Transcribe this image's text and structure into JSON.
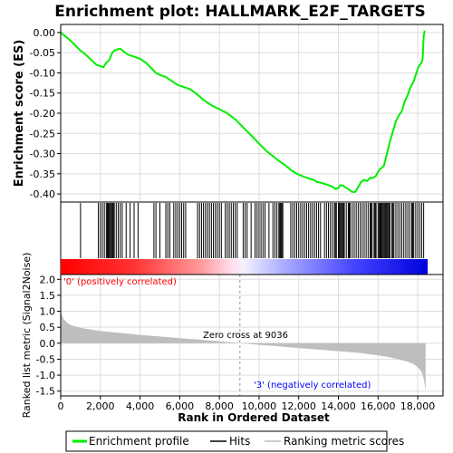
{
  "chart_data": {
    "title": "Enrichment plot: HALLMARK_E2F_TARGETS",
    "type": "line",
    "x_range": [
      0,
      18500
    ],
    "x_ticks": [
      0,
      2000,
      4000,
      6000,
      8000,
      10000,
      12000,
      14000,
      16000,
      18000
    ],
    "x_tick_labels": [
      "0",
      "2,000",
      "4,000",
      "6,000",
      "8,000",
      "10,000",
      "12,000",
      "14,000",
      "16,000",
      "18,000"
    ],
    "xlabel": "Rank in Ordered Dataset",
    "panels": {
      "es": {
        "ylabel": "Enrichment score (ES)",
        "ylim": [
          -0.42,
          0.02
        ],
        "y_ticks": [
          0.0,
          -0.05,
          -0.1,
          -0.15,
          -0.2,
          -0.25,
          -0.3,
          -0.35,
          -0.4
        ],
        "y_tick_labels": [
          "0.00",
          "-0.05",
          "-0.10",
          "-0.15",
          "-0.20",
          "-0.25",
          "-0.30",
          "-0.35",
          "-0.40"
        ],
        "grid": true,
        "series": [
          {
            "name": "Enrichment profile",
            "color": "#00ee00",
            "x": [
              0,
              300,
              600,
              900,
              1000,
              1200,
              1500,
              1800,
              1900,
              2000,
              2150,
              2300,
              2450,
              2600,
              2700,
              2850,
              3000,
              3150,
              3400,
              3700,
              4000,
              4300,
              4600,
              4800,
              5000,
              5300,
              5600,
              5900,
              6200,
              6500,
              6800,
              7200,
              7600,
              8000,
              8400,
              8800,
              9200,
              9600,
              10000,
              10400,
              10800,
              11000,
              11200,
              11400,
              11600,
              11800,
              12000,
              12300,
              12600,
              12800,
              12900,
              13100,
              13300,
              13500,
              13700,
              13850,
              14000,
              14100,
              14250,
              14400,
              14550,
              14700,
              14850,
              15000,
              15150,
              15300,
              15450,
              15600,
              15750,
              15900,
              16000,
              16100,
              16200,
              16300,
              16450,
              16600,
              16750,
              16900,
              17050,
              17200,
              17350,
              17500,
              17600,
              17700,
              17800,
              17900,
              18000,
              18100,
              18200,
              18250,
              18300,
              18350
            ],
            "y": [
              0.0,
              -0.012,
              -0.025,
              -0.04,
              -0.045,
              -0.052,
              -0.066,
              -0.08,
              -0.082,
              -0.083,
              -0.086,
              -0.075,
              -0.068,
              -0.05,
              -0.045,
              -0.042,
              -0.04,
              -0.046,
              -0.055,
              -0.06,
              -0.065,
              -0.075,
              -0.09,
              -0.1,
              -0.105,
              -0.11,
              -0.12,
              -0.13,
              -0.135,
              -0.14,
              -0.15,
              -0.167,
              -0.18,
              -0.19,
              -0.2,
              -0.215,
              -0.235,
              -0.255,
              -0.275,
              -0.295,
              -0.31,
              -0.318,
              -0.325,
              -0.332,
              -0.34,
              -0.347,
              -0.352,
              -0.358,
              -0.363,
              -0.366,
              -0.37,
              -0.372,
              -0.375,
              -0.378,
              -0.382,
              -0.388,
              -0.385,
              -0.378,
              -0.38,
              -0.385,
              -0.39,
              -0.395,
              -0.395,
              -0.383,
              -0.37,
              -0.365,
              -0.368,
              -0.36,
              -0.36,
              -0.355,
              -0.345,
              -0.338,
              -0.335,
              -0.33,
              -0.3,
              -0.27,
              -0.245,
              -0.22,
              -0.205,
              -0.195,
              -0.17,
              -0.155,
              -0.14,
              -0.13,
              -0.12,
              -0.105,
              -0.09,
              -0.08,
              -0.075,
              -0.065,
              -0.01,
              0.005
            ]
          }
        ]
      },
      "hits": {
        "name": "Hits",
        "positions": [
          1000,
          1900,
          2000,
          2100,
          2200,
          2300,
          2350,
          2400,
          2450,
          2500,
          2550,
          2600,
          2650,
          2700,
          2800,
          2900,
          3000,
          3100,
          3300,
          3500,
          3700,
          3900,
          4700,
          4800,
          5000,
          5300,
          5400,
          5500,
          5700,
          5800,
          5900,
          6000,
          6100,
          6200,
          6300,
          6900,
          7000,
          7100,
          7200,
          7300,
          7400,
          7500,
          7600,
          7700,
          7800,
          7900,
          8000,
          8100,
          8300,
          8400,
          8500,
          8600,
          8700,
          8800,
          8900,
          9200,
          9300,
          9400,
          9600,
          9800,
          9900,
          10000,
          10100,
          10200,
          10300,
          10500,
          10700,
          10800,
          10900,
          11000,
          11050,
          11100,
          11150,
          11200,
          11600,
          11700,
          11800,
          11900,
          12000,
          12100,
          12200,
          12300,
          12400,
          12500,
          12600,
          12700,
          12800,
          12900,
          13000,
          13100,
          13300,
          13400,
          13500,
          13600,
          13700,
          13800,
          13850,
          13900,
          14000,
          14050,
          14100,
          14150,
          14200,
          14250,
          14300,
          14400,
          14500,
          14550,
          14600,
          14700,
          14800,
          14900,
          15000,
          15100,
          15200,
          15300,
          15400,
          15500,
          15600,
          15650,
          15700,
          15800,
          15850,
          15900,
          16000,
          16050,
          16100,
          16150,
          16200,
          16250,
          16300,
          16350,
          16400,
          16450,
          16500,
          16550,
          16600,
          16700,
          16750,
          16800,
          16900,
          17000,
          17100,
          17200,
          17300,
          17400,
          17500,
          17600,
          17700,
          17750,
          17800,
          17900,
          18000,
          18100,
          18200,
          18300
        ]
      },
      "metric": {
        "name": "Ranking metric scores",
        "ylabel": "Ranked list metric (Signal2Noise)",
        "ylim": [
          -1.65,
          2.15
        ],
        "y_ticks": [
          2.0,
          1.5,
          1.0,
          0.5,
          0.0,
          -0.5,
          -1.0,
          -1.5
        ],
        "y_tick_labels": [
          "2.0",
          "1.5",
          "1.0",
          "0.5",
          "0.0",
          "-0.5",
          "-1.0",
          "-1.5"
        ],
        "grid": true,
        "x": [
          0,
          50,
          150,
          300,
          500,
          1000,
          2000,
          3000,
          4000,
          5000,
          6000,
          7000,
          8000,
          9036,
          10000,
          11000,
          12000,
          13000,
          14000,
          15000,
          16000,
          16500,
          17000,
          17500,
          17800,
          18000,
          18200,
          18300,
          18400
        ],
        "y": [
          1.05,
          0.9,
          0.75,
          0.65,
          0.57,
          0.48,
          0.38,
          0.32,
          0.26,
          0.21,
          0.16,
          0.11,
          0.06,
          0.0,
          -0.05,
          -0.1,
          -0.15,
          -0.2,
          -0.25,
          -0.3,
          -0.38,
          -0.43,
          -0.5,
          -0.58,
          -0.66,
          -0.75,
          -0.9,
          -1.1,
          -1.48
        ]
      },
      "zero_cross": 9036
    },
    "annotations": {
      "pos_label": "'0' (positively correlated)",
      "neg_label": "'3' (negatively correlated)",
      "zero_cross_label": "Zero cross at 9036"
    },
    "colors": {
      "es_line": "#00ee00",
      "pos": "#ff0000",
      "neg": "#0000ff",
      "metric_fill": "#bebebe",
      "pos_text": "#ff0000",
      "neg_text": "#0000ff"
    },
    "legend": {
      "placement": "bottom",
      "items": [
        "Enrichment profile",
        "Hits",
        "Ranking metric scores"
      ]
    }
  }
}
